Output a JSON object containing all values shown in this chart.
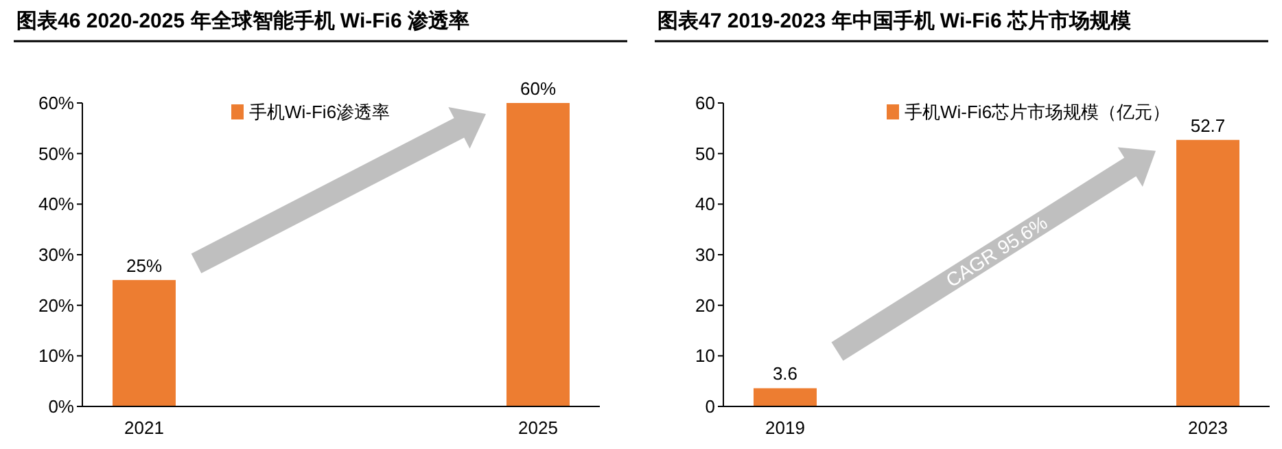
{
  "chart_data": [
    {
      "type": "bar",
      "title": "图表46   2020-2025 年全球智能手机 Wi-Fi6 渗透率",
      "categories": [
        "2021",
        "2025"
      ],
      "series": [
        {
          "name": "手机Wi-Fi6渗透率",
          "color": "#ed7d31",
          "values": [
            25,
            60
          ]
        }
      ],
      "value_labels": [
        "25%",
        "60%"
      ],
      "ylim": [
        0,
        60
      ],
      "yticks": [
        {
          "value": 0,
          "label": "0%"
        },
        {
          "value": 10,
          "label": "10%"
        },
        {
          "value": 20,
          "label": "20%"
        },
        {
          "value": 30,
          "label": "30%"
        },
        {
          "value": 40,
          "label": "40%"
        },
        {
          "value": 50,
          "label": "50%"
        },
        {
          "value": 60,
          "label": "60%"
        }
      ],
      "legend": "top",
      "grid": false
    },
    {
      "type": "bar",
      "title": "图表47   2019-2023 年中国手机 Wi-Fi6 芯片市场规模",
      "categories": [
        "2019",
        "2023"
      ],
      "series": [
        {
          "name": "手机Wi-Fi6芯片市场规模（亿元）",
          "color": "#ed7d31",
          "values": [
            3.6,
            52.7
          ]
        }
      ],
      "data_labels": true,
      "ylim": [
        0,
        60
      ],
      "yticks": [
        0,
        10,
        20,
        30,
        40,
        50,
        60
      ],
      "legend": "top",
      "grid": false,
      "annotations": [
        "CAGR 95.6%"
      ]
    }
  ]
}
